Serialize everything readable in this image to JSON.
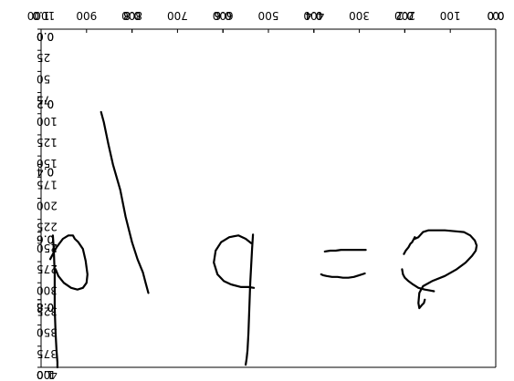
{
  "chart_data": {
    "type": "line",
    "title": "",
    "xlabel": "",
    "ylabel": "",
    "mirrored": true,
    "axes": [
      {
        "name": "inner-axes",
        "xlim": [
          0.0,
          1.0
        ],
        "ylim": [
          0.0,
          1.0
        ],
        "xticks": [
          "0.0",
          "0.2",
          "0.4",
          "0.6",
          "0.8",
          "1.0"
        ],
        "yticks": [
          "0.0",
          "0.2",
          "0.4",
          "0.6",
          "0.8",
          "1.0"
        ]
      },
      {
        "name": "outer-axes",
        "xlim": [
          0.0,
          1.0
        ],
        "ylim": [
          0.0,
          1.0
        ],
        "xticks": [
          "0.0",
          "0.2",
          "0.4",
          "0.6",
          "0.8",
          "1.0"
        ],
        "yticks": [
          "0.0",
          "0.2",
          "0.4",
          "0.6",
          "0.8",
          "1.0"
        ]
      },
      {
        "name": "image-axes",
        "xlim": [
          0,
          1000
        ],
        "ylim": [
          0,
          400
        ],
        "xticks": [
          "0",
          "100",
          "200",
          "300",
          "400",
          "500",
          "600",
          "700",
          "800",
          "900",
          "1000"
        ],
        "yticks": [
          "0",
          "25",
          "50",
          "75",
          "100",
          "125",
          "150",
          "175",
          "200",
          "225",
          "250",
          "275",
          "300",
          "325",
          "350",
          "375",
          "400"
        ]
      }
    ],
    "series": [
      {
        "name": "handwriting-a",
        "x": [
          202,
          198,
          192,
          188,
          184,
          180,
          178,
          178,
          170,
          160,
          148,
          130,
          112,
          90,
          70,
          56,
          46,
          42,
          44,
          52,
          66,
          86,
          112,
          140,
          160,
          168,
          170,
          168,
          162,
          158,
          156
        ],
        "y": [
          134,
          138,
          142,
          146,
          148,
          152,
          154,
          152,
          154,
          160,
          162,
          162,
          162,
          161,
          160,
          156,
          150,
          144,
          138,
          132,
          124,
          116,
          108,
          102,
          96,
          88,
          76,
          70,
          74,
          76,
          80
        ]
      },
      {
        "name": "handwriting-a-tail",
        "x": [
          206,
          204,
          200,
          192,
          182,
          170,
          156,
          146,
          136
        ],
        "y": [
          116,
          110,
          106,
          102,
          98,
          94,
          92,
          91,
          90
        ]
      },
      {
        "name": "handwriting-equals-top",
        "x": [
          286,
          300,
          320,
          340,
          352,
          364,
          376
        ],
        "y": [
          139,
          139,
          139,
          139,
          138,
          138,
          137
        ]
      },
      {
        "name": "handwriting-equals-bottom",
        "x": [
          288,
          300,
          312,
          324,
          336,
          348,
          360,
          372,
          380,
          384
        ],
        "y": [
          111,
          109,
          107,
          106,
          106,
          107,
          107,
          108,
          109,
          110
        ]
      },
      {
        "name": "handwriting-p-stem",
        "x": [
          534,
          536,
          538,
          540,
          542,
          544,
          546,
          548,
          550
        ],
        "y": [
          157,
          140,
          120,
          100,
          70,
          40,
          20,
          10,
          3
        ]
      },
      {
        "name": "handwriting-p-loop",
        "x": [
          538,
          550,
          566,
          586,
          604,
          616,
          620,
          612,
          598,
          582,
          560,
          544,
          532
        ],
        "y": [
          147,
          152,
          156,
          154,
          148,
          138,
          124,
          110,
          102,
          98,
          95,
          95,
          94
        ]
      },
      {
        "name": "handwriting-slash",
        "x": [
          764,
          770,
          776,
          788,
          800,
          814,
          826,
          842,
          852,
          862,
          868
        ],
        "y": [
          88,
          100,
          112,
          128,
          148,
          178,
          210,
          240,
          264,
          290,
          302
        ]
      },
      {
        "name": "handwriting-b-stem",
        "x": [
          974,
          972,
          970,
          970,
          968,
          966,
          964,
          964
        ],
        "y": [
          156,
          140,
          110,
          70,
          40,
          20,
          6,
          0
        ]
      },
      {
        "name": "handwriting-b-loop",
        "x": [
          980,
          966,
          952,
          940,
          930,
          926,
          918,
          908,
          902,
          898,
          900,
          908,
          920,
          934,
          950,
          962,
          968
        ],
        "y": [
          128,
          142,
          152,
          156,
          156,
          152,
          148,
          140,
          126,
          110,
          100,
          94,
          92,
          94,
          100,
          108,
          116
        ]
      }
    ]
  }
}
